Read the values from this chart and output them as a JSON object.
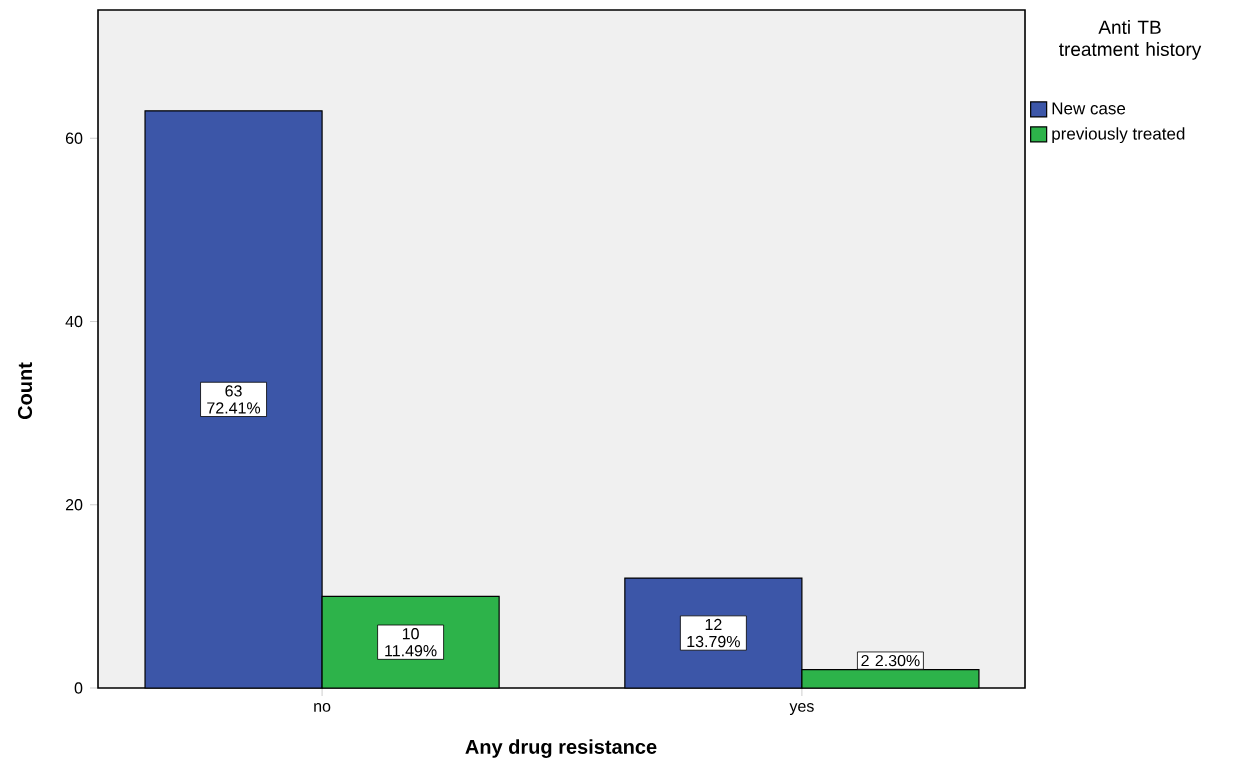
{
  "chart_data": {
    "type": "bar",
    "xlabel": "Any drug resistance",
    "ylabel": "Count",
    "legend_title": "Anti TB treatment history",
    "categories": [
      "no",
      "yes"
    ],
    "series": [
      {
        "name": "New case",
        "color": "#3c56a8",
        "values": [
          63,
          12
        ],
        "value_labels": [
          "63 72.41%",
          "12 13.79%"
        ]
      },
      {
        "name": "previously treated",
        "color": "#2db34a",
        "values": [
          10,
          2
        ],
        "value_labels": [
          "10 11.49%",
          "2 2.30%"
        ]
      }
    ],
    "ylim": [
      0,
      74
    ],
    "yticks": [
      0,
      20,
      40,
      60
    ],
    "legend": "right"
  }
}
